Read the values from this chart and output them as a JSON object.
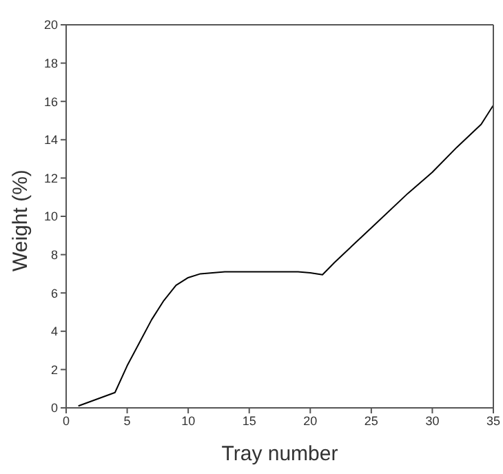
{
  "chart_data": {
    "type": "line",
    "xlabel": "Tray number",
    "ylabel": "Weight (%)",
    "x": [
      1,
      4,
      5,
      6,
      7,
      8,
      9,
      10,
      11,
      12,
      13,
      15,
      17,
      19,
      20,
      21,
      22,
      25,
      28,
      30,
      32,
      34,
      35
    ],
    "series": [
      {
        "color": "#000000",
        "values": [
          0.1,
          0.8,
          2.2,
          3.4,
          4.6,
          5.6,
          6.4,
          6.8,
          7.0,
          7.05,
          7.1,
          7.1,
          7.1,
          7.1,
          7.05,
          6.95,
          7.6,
          9.4,
          11.2,
          12.3,
          13.6,
          14.8,
          15.8
        ]
      }
    ],
    "xlim": [
      0,
      35
    ],
    "xticks": [
      0,
      5,
      10,
      15,
      20,
      25,
      30,
      35
    ],
    "ylim": [
      0,
      20
    ],
    "yticks": [
      0,
      2,
      4,
      6,
      8,
      10,
      12,
      14,
      16,
      18,
      20
    ],
    "grid": false,
    "legend": false,
    "marker": "none",
    "line_style": "solid"
  }
}
